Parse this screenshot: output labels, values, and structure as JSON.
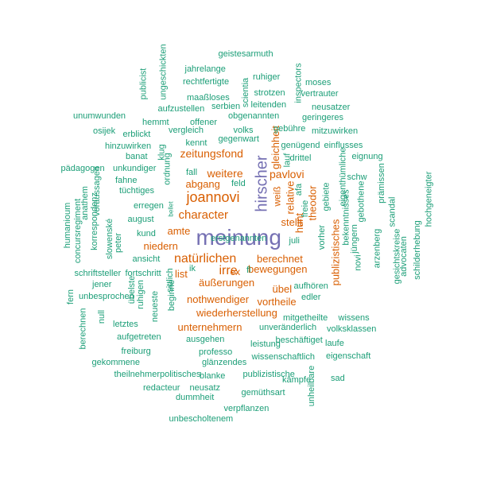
{
  "colors": {
    "teal": "#1b9e77",
    "orange": "#d95f02",
    "purple": "#7570b3"
  },
  "words": [
    {
      "text": "meinung",
      "color": "purple"
    },
    {
      "text": "hirscher",
      "color": "purple"
    },
    {
      "text": "joannovi",
      "color": "orange"
    },
    {
      "text": "irre",
      "color": "orange"
    },
    {
      "text": "natürlichen",
      "color": "orange"
    },
    {
      "text": "character",
      "color": "orange"
    },
    {
      "text": "zeitungsfond",
      "color": "orange"
    },
    {
      "text": "weitere",
      "color": "orange"
    },
    {
      "text": "abgang",
      "color": "orange"
    },
    {
      "text": "pavlovi",
      "color": "orange"
    },
    {
      "text": "amte",
      "color": "orange"
    },
    {
      "text": "niedern",
      "color": "orange"
    },
    {
      "text": "berechnet",
      "color": "orange"
    },
    {
      "text": "bewegungen",
      "color": "orange"
    },
    {
      "text": "äußerungen",
      "color": "orange"
    },
    {
      "text": "übel",
      "color": "orange"
    },
    {
      "text": "nothwendiger",
      "color": "orange"
    },
    {
      "text": "vortheile",
      "color": "orange"
    },
    {
      "text": "wiederherstellung",
      "color": "orange"
    },
    {
      "text": "unternehmern",
      "color": "orange"
    },
    {
      "text": "gleichheit",
      "color": "orange"
    },
    {
      "text": "relative",
      "color": "orange"
    },
    {
      "text": "weiß",
      "color": "orange"
    },
    {
      "text": "theodor",
      "color": "orange"
    },
    {
      "text": "hunt",
      "color": "orange"
    },
    {
      "text": "stellt",
      "color": "orange"
    },
    {
      "text": "publizistisches",
      "color": "orange"
    },
    {
      "text": "list",
      "color": "orange"
    },
    {
      "text": "ex",
      "color": "orange"
    },
    {
      "text": "fl",
      "color": "teal"
    },
    {
      "text": "ik",
      "color": "teal"
    },
    {
      "text": "geistesarmuth",
      "color": "teal"
    },
    {
      "text": "jahrelange",
      "color": "teal"
    },
    {
      "text": "ungeschickten",
      "color": "teal"
    },
    {
      "text": "publicist",
      "color": "teal"
    },
    {
      "text": "rechtfertigte",
      "color": "teal"
    },
    {
      "text": "ruhiger",
      "color": "teal"
    },
    {
      "text": "inspectors",
      "color": "teal"
    },
    {
      "text": "moses",
      "color": "teal"
    },
    {
      "text": "maaßloses",
      "color": "teal"
    },
    {
      "text": "scientia",
      "color": "teal"
    },
    {
      "text": "strotzen",
      "color": "teal"
    },
    {
      "text": "vertrauter",
      "color": "teal"
    },
    {
      "text": "aufzustellen",
      "color": "teal"
    },
    {
      "text": "serbien",
      "color": "teal"
    },
    {
      "text": "leitenden",
      "color": "teal"
    },
    {
      "text": "neusatzer",
      "color": "teal"
    },
    {
      "text": "unumwunden",
      "color": "teal"
    },
    {
      "text": "obgenannten",
      "color": "teal"
    },
    {
      "text": "geringeres",
      "color": "teal"
    },
    {
      "text": "hemmt",
      "color": "teal"
    },
    {
      "text": "offener",
      "color": "teal"
    },
    {
      "text": "osijek",
      "color": "teal"
    },
    {
      "text": "erblickt",
      "color": "teal"
    },
    {
      "text": "vergleich",
      "color": "teal"
    },
    {
      "text": "volks",
      "color": "teal"
    },
    {
      "text": "gebühre",
      "color": "teal"
    },
    {
      "text": "mitzuwirken",
      "color": "teal"
    },
    {
      "text": "hinzuwirken",
      "color": "teal"
    },
    {
      "text": "kennt",
      "color": "teal"
    },
    {
      "text": "gegenwart",
      "color": "teal"
    },
    {
      "text": "genügend",
      "color": "teal"
    },
    {
      "text": "einflusses",
      "color": "teal"
    },
    {
      "text": "klug",
      "color": "teal"
    },
    {
      "text": "banat",
      "color": "teal"
    },
    {
      "text": "lauf",
      "color": "teal"
    },
    {
      "text": "drittel",
      "color": "teal"
    },
    {
      "text": "eignung",
      "color": "teal"
    },
    {
      "text": "pädagogen",
      "color": "teal"
    },
    {
      "text": "unkundiger",
      "color": "teal"
    },
    {
      "text": "ordnung",
      "color": "teal"
    },
    {
      "text": "fall",
      "color": "teal"
    },
    {
      "text": "eigenthümliche",
      "color": "teal"
    },
    {
      "text": "schw",
      "color": "teal"
    },
    {
      "text": "fahne",
      "color": "teal"
    },
    {
      "text": "feld",
      "color": "teal"
    },
    {
      "text": "prämissen",
      "color": "teal"
    },
    {
      "text": "hochgeneigter",
      "color": "teal"
    },
    {
      "text": "tüchtiges",
      "color": "teal"
    },
    {
      "text": "afa",
      "color": "teal"
    },
    {
      "text": "anathem",
      "color": "teal"
    },
    {
      "text": "voraussagen",
      "color": "teal"
    },
    {
      "text": "gebiete",
      "color": "teal"
    },
    {
      "text": "gebothene",
      "color": "teal"
    },
    {
      "text": "erregen",
      "color": "teal"
    },
    {
      "text": "freie",
      "color": "teal"
    },
    {
      "text": "bellet",
      "color": "teal"
    },
    {
      "text": "humanioum",
      "color": "teal"
    },
    {
      "text": "concursregiment",
      "color": "teal"
    },
    {
      "text": "korrespondenz",
      "color": "teal"
    },
    {
      "text": "august",
      "color": "teal"
    },
    {
      "text": "slowenské",
      "color": "teal"
    },
    {
      "text": "kund",
      "color": "teal"
    },
    {
      "text": "juli",
      "color": "teal"
    },
    {
      "text": "vorher",
      "color": "teal"
    },
    {
      "text": "jüngern",
      "color": "teal"
    },
    {
      "text": "bekenntnisses",
      "color": "teal"
    },
    {
      "text": "scandal",
      "color": "teal"
    },
    {
      "text": "peter",
      "color": "teal"
    },
    {
      "text": "ansicht",
      "color": "teal"
    },
    {
      "text": "arzenberg",
      "color": "teal"
    },
    {
      "text": "novi",
      "color": "teal"
    },
    {
      "text": "gesichtskreise",
      "color": "teal"
    },
    {
      "text": "advocaten",
      "color": "teal"
    },
    {
      "text": "schilderhebung",
      "color": "teal"
    },
    {
      "text": "schriftsteller",
      "color": "teal"
    },
    {
      "text": "fortschritt",
      "color": "teal"
    },
    {
      "text": "sittlich",
      "color": "teal"
    },
    {
      "text": "jener",
      "color": "teal"
    },
    {
      "text": "aufhören",
      "color": "teal"
    },
    {
      "text": "fern",
      "color": "teal"
    },
    {
      "text": "unbesprochen",
      "color": "teal"
    },
    {
      "text": "übelste",
      "color": "teal"
    },
    {
      "text": "ruhigen",
      "color": "teal"
    },
    {
      "text": "beginne",
      "color": "teal"
    },
    {
      "text": "edler",
      "color": "teal"
    },
    {
      "text": "null",
      "color": "teal"
    },
    {
      "text": "letztes",
      "color": "teal"
    },
    {
      "text": "neueste",
      "color": "teal"
    },
    {
      "text": "mitgetheilte",
      "color": "teal"
    },
    {
      "text": "wissens",
      "color": "teal"
    },
    {
      "text": "berechnen",
      "color": "teal"
    },
    {
      "text": "unveränderlich",
      "color": "teal"
    },
    {
      "text": "volksklassen",
      "color": "teal"
    },
    {
      "text": "aufgetreten",
      "color": "teal"
    },
    {
      "text": "ausgehen",
      "color": "teal"
    },
    {
      "text": "beschäftiget",
      "color": "teal"
    },
    {
      "text": "leistung",
      "color": "teal"
    },
    {
      "text": "laufe",
      "color": "teal"
    },
    {
      "text": "freiburg",
      "color": "teal"
    },
    {
      "text": "professo",
      "color": "teal"
    },
    {
      "text": "wissenschaftlich",
      "color": "teal"
    },
    {
      "text": "eigenschaft",
      "color": "teal"
    },
    {
      "text": "gekommene",
      "color": "teal"
    },
    {
      "text": "glänzendes",
      "color": "teal"
    },
    {
      "text": "theilnehmerpolitisches",
      "color": "teal"
    },
    {
      "text": "blanke",
      "color": "teal"
    },
    {
      "text": "publizistische",
      "color": "teal"
    },
    {
      "text": "kämpfe",
      "color": "teal"
    },
    {
      "text": "sad",
      "color": "teal"
    },
    {
      "text": "redacteur",
      "color": "teal"
    },
    {
      "text": "neusatz",
      "color": "teal"
    },
    {
      "text": "unheilbare",
      "color": "teal"
    },
    {
      "text": "dummheit",
      "color": "teal"
    },
    {
      "text": "gemüthsart",
      "color": "teal"
    },
    {
      "text": "verpflanzen",
      "color": "teal"
    },
    {
      "text": "unbescholtenem",
      "color": "teal"
    },
    {
      "text": "erstgenannten",
      "color": "teal"
    }
  ]
}
